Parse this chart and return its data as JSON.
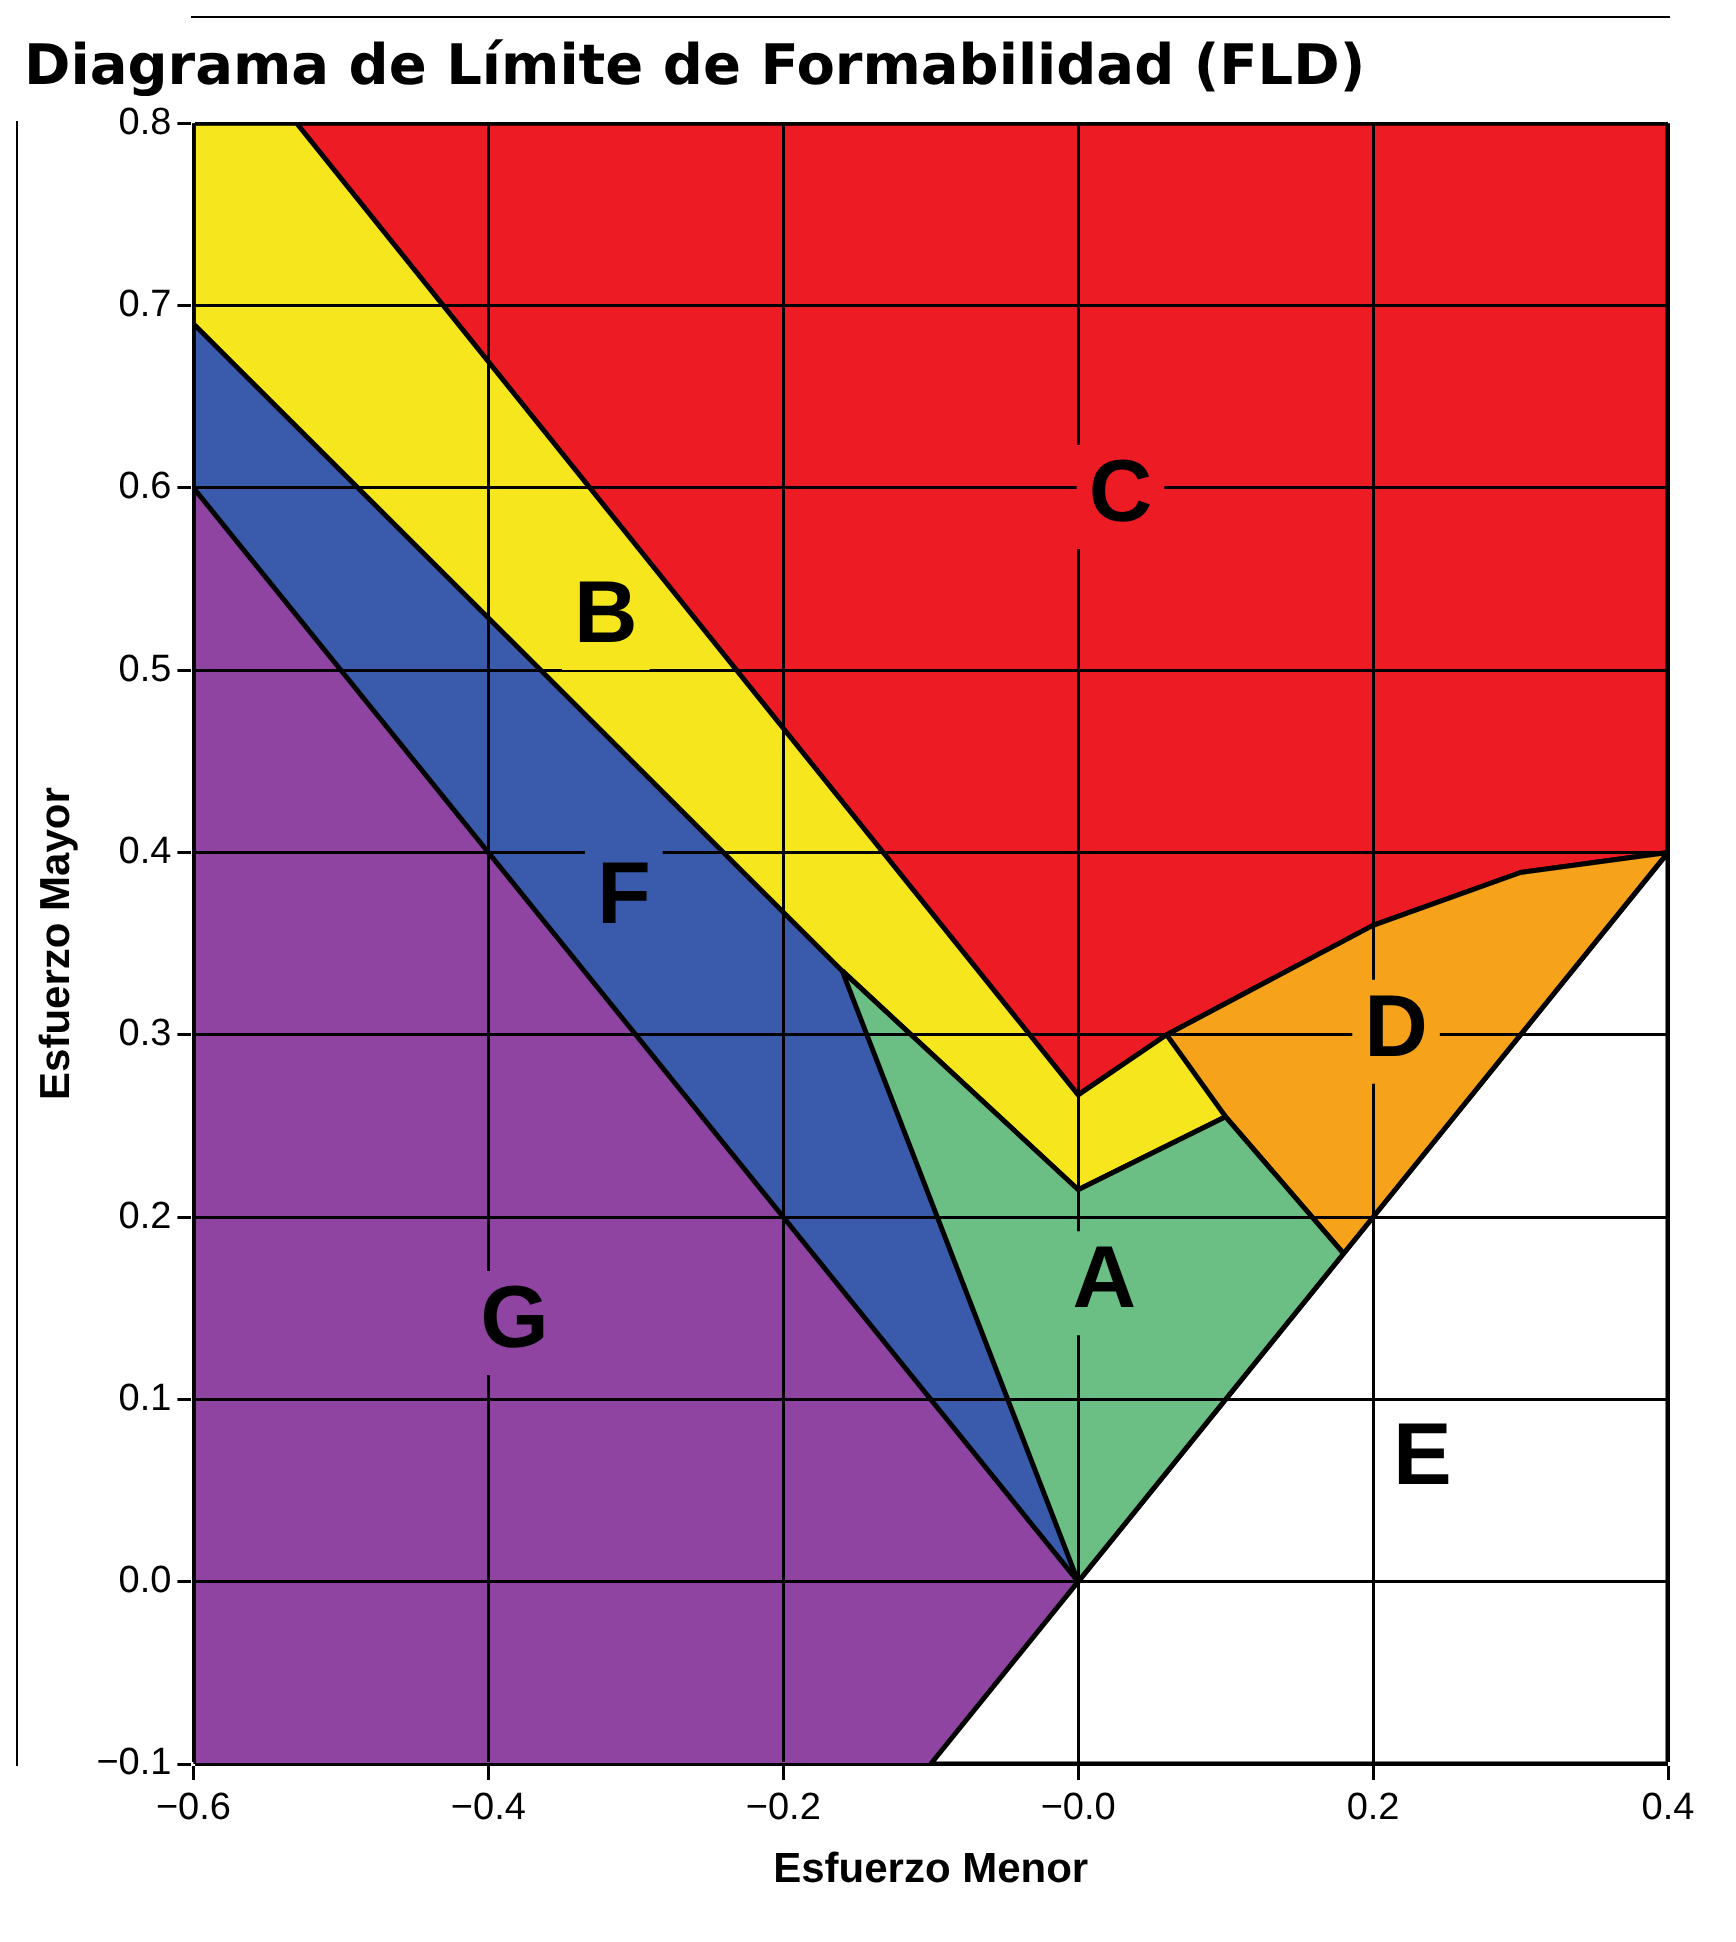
{
  "chart_data": {
    "type": "area",
    "title": "Diagrama de Límite de Formabilidad (FLD)",
    "xlabel": "Esfuerzo Menor",
    "ylabel": "Esfuerzo Mayor",
    "xlim": [
      -0.6,
      0.4
    ],
    "ylim": [
      -0.1,
      0.8
    ],
    "xticks": [
      {
        "value": -0.6,
        "label": "−0.6"
      },
      {
        "value": -0.4,
        "label": "−0.4"
      },
      {
        "value": -0.2,
        "label": "−0.2"
      },
      {
        "value": 0,
        "label": "−0.0"
      },
      {
        "value": 0.2,
        "label": "0.2"
      },
      {
        "value": 0.4,
        "label": "0.4"
      }
    ],
    "yticks": [
      {
        "value": -0.1,
        "label": "−0.1"
      },
      {
        "value": 0,
        "label": "0.0"
      },
      {
        "value": 0.1,
        "label": "0.1"
      },
      {
        "value": 0.2,
        "label": "0.2"
      },
      {
        "value": 0.3,
        "label": "0.3"
      },
      {
        "value": 0.4,
        "label": "0.4"
      },
      {
        "value": 0.5,
        "label": "0.5"
      },
      {
        "value": 0.6,
        "label": "0.6"
      },
      {
        "value": 0.7,
        "label": "0.7"
      },
      {
        "value": 0.8,
        "label": "0.8"
      }
    ],
    "grid": true,
    "legend": false,
    "series": [
      {
        "name": "G",
        "color": "#8e44a0",
        "x": [
          -0.6,
          -0.6,
          0,
          -0.1
        ],
        "values": [
          -0.1,
          0.6,
          0,
          -0.1
        ]
      },
      {
        "name": "F",
        "color": "#3a5bab",
        "x": [
          -0.6,
          -0.6,
          -0.16,
          0
        ],
        "values": [
          0.6,
          0.69,
          0.335,
          0
        ]
      },
      {
        "name": "A",
        "color": "#6cbf84",
        "x": [
          -0.16,
          0,
          0.1,
          0.18,
          0
        ],
        "values": [
          0.335,
          0.215,
          0.255,
          0.18,
          0
        ]
      },
      {
        "name": "B",
        "color": "#f5e61e",
        "x": [
          -0.6,
          -0.6,
          -0.53,
          0,
          0.06,
          0.1,
          0,
          -0.16
        ],
        "values": [
          0.69,
          0.8,
          0.8,
          0.267,
          0.3,
          0.255,
          0.215,
          0.335
        ]
      },
      {
        "name": "D",
        "color": "#f7a21b",
        "x": [
          0.06,
          0.2,
          0.3,
          0.4,
          0.18,
          0.1
        ],
        "values": [
          0.3,
          0.36,
          0.389,
          0.4,
          0.18,
          0.255
        ]
      },
      {
        "name": "C",
        "color": "#ed1c24",
        "x": [
          -0.53,
          0.4,
          0.4,
          0.3,
          0.2,
          0.06,
          0
        ],
        "values": [
          0.8,
          0.8,
          0.4,
          0.389,
          0.36,
          0.3,
          0.267
        ]
      },
      {
        "name": "E",
        "color": "#ffffff",
        "x": [
          0,
          0.4,
          0.4,
          -0.1
        ],
        "values": [
          0,
          0.4,
          -0.1,
          -0.1
        ]
      }
    ]
  }
}
